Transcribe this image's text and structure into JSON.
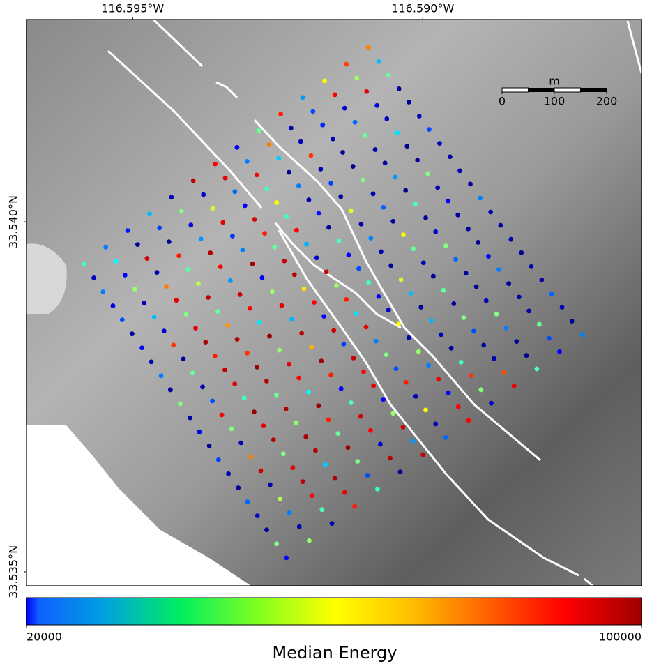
{
  "chart_data": {
    "type": "scatter",
    "xlim": [
      -116.59683,
      -116.58623
    ],
    "ylim": [
      33.5348,
      33.54289
    ],
    "xticks": [
      {
        "value": -116.595,
        "label": "116.595°W"
      },
      {
        "value": -116.59,
        "label": "116.590°W"
      }
    ],
    "yticks": [
      {
        "value": 33.54,
        "label": "33.540°N"
      },
      {
        "value": 33.535,
        "label": "33.535°N"
      }
    ],
    "lines": [
      {
        "start": [
          -116.59584,
          33.5394
        ],
        "end": [
          -116.59094,
          33.54249
        ],
        "values": [
          55000,
          40000,
          32000,
          45000,
          24000,
          95000,
          90000,
          30000,
          58000,
          88000,
          42000,
          70000,
          85000,
          80000
        ]
      },
      {
        "start": [
          -116.59567,
          33.5392
        ],
        "end": [
          -116.59076,
          33.54229
        ],
        "values": [
          25000,
          50000,
          22000,
          35000,
          60000,
          26000,
          92000,
          40000,
          80000,
          24000,
          36000,
          90000,
          62000,
          45000
        ]
      },
      {
        "start": [
          -116.59551,
          33.539
        ],
        "end": [
          -116.59059,
          33.5421
        ],
        "values": [
          40000,
          30000,
          94000,
          22000,
          28000,
          66000,
          38000,
          90000,
          46000,
          24000,
          33000,
          26000,
          92000,
          58000
        ]
      },
      {
        "start": [
          -116.59534,
          33.5388
        ],
        "end": [
          -116.59041,
          33.5419
        ],
        "values": [
          28000,
          62000,
          24000,
          88000,
          42000,
          92000,
          30000,
          55000,
          22000,
          86000,
          24000,
          38000,
          27000,
          23000
        ]
      },
      {
        "start": [
          -116.59518,
          33.5386
        ],
        "end": [
          -116.59024,
          33.54171
        ],
        "values": [
          36000,
          24000,
          80000,
          57000,
          96000,
          34000,
          93000,
          70000,
          40000,
          24000,
          22000,
          58000,
          25000,
          22000
        ]
      },
      {
        "start": [
          -116.59501,
          33.5384
        ],
        "end": [
          -116.59006,
          33.54151
        ],
        "values": [
          22000,
          45000,
          92000,
          64000,
          90000,
          40000,
          88000,
          55000,
          24000,
          35000,
          21000,
          23000,
          48000,
          24000
        ]
      },
      {
        "start": [
          -116.59484,
          33.5382
        ],
        "end": [
          -116.58989,
          33.54132
        ],
        "values": [
          30000,
          26000,
          60000,
          95000,
          42000,
          97000,
          58000,
          90000,
          31000,
          22000,
          60000,
          23000,
          21000,
          36000
        ]
      },
      {
        "start": [
          -116.59468,
          33.538
        ],
        "end": [
          -116.58971,
          33.54112
        ],
        "values": [
          24000,
          86000,
          92000,
          58000,
          94000,
          30000,
          94000,
          44000,
          22000,
          68000,
          24000,
          42000,
          22000,
          25000
        ]
      },
      {
        "start": [
          -116.59451,
          33.5378
        ],
        "end": [
          -116.58953,
          33.54093
        ],
        "values": [
          40000,
          22000,
          97000,
          78000,
          90000,
          62000,
          96000,
          26000,
          55000,
          23000,
          38000,
          21000,
          60000,
          22000
        ]
      },
      {
        "start": [
          -116.59435,
          33.5376
        ],
        "end": [
          -116.58936,
          33.54073
        ],
        "values": [
          22000,
          58000,
          88000,
          96000,
          48000,
          92000,
          72000,
          94000,
          30000,
          40000,
          22000,
          56000,
          24000,
          23000
        ]
      },
      {
        "start": [
          -116.59418,
          33.5374
        ],
        "end": [
          -116.58918,
          33.54054
        ],
        "values": [
          60000,
          24000,
          95000,
          86000,
          98000,
          44000,
          90000,
          62000,
          36000,
          24000,
          70000,
          22000,
          30000,
          21000
        ]
      },
      {
        "start": [
          -116.59401,
          33.5372
        ],
        "end": [
          -116.58901,
          33.54034
        ],
        "values": [
          23000,
          36000,
          92000,
          98000,
          62000,
          95000,
          30000,
          88000,
          55000,
          22000,
          58000,
          25000,
          23000,
          40000
        ]
      },
      {
        "start": [
          -116.59385,
          33.537
        ],
        "end": [
          -116.58883,
          33.54014
        ],
        "values": [
          28000,
          90000,
          55000,
          96000,
          92000,
          76000,
          94000,
          48000,
          30000,
          66000,
          24000,
          60000,
          22000,
          24000
        ]
      },
      {
        "start": [
          -116.59368,
          33.5368
        ],
        "end": [
          -116.58866,
          33.53995
        ],
        "values": [
          22000,
          60000,
          98000,
          58000,
          90000,
          97000,
          35000,
          92000,
          26000,
          45000,
          22000,
          38000,
          21000,
          22000
        ]
      },
      {
        "start": [
          -116.59352,
          33.5366
        ],
        "end": [
          -116.58848,
          33.53975
        ],
        "values": [
          35000,
          24000,
          92000,
          96000,
          50000,
          88000,
          95000,
          40000,
          70000,
          22000,
          58000,
          23000,
          30000,
          24000
        ]
      },
      {
        "start": [
          -116.59335,
          33.5364
        ],
        "end": [
          -116.5883,
          33.53956
        ],
        "values": [
          24000,
          80000,
          96000,
          62000,
          98000,
          30000,
          90000,
          60000,
          24000,
          44000,
          22000,
          21000,
          40000,
          22000
        ]
      },
      {
        "start": [
          -116.59318,
          33.5362
        ],
        "end": [
          -116.58813,
          33.53936
        ],
        "values": [
          22000,
          94000,
          60000,
          97000,
          88000,
          56000,
          92000,
          36000,
          62000,
          25000,
          60000,
          24000,
          22000,
          23000
        ]
      },
      {
        "start": [
          -116.59302,
          33.536
        ],
        "end": [
          -116.58795,
          33.53917
        ],
        "values": [
          38000,
          24000,
          92000,
          96000,
          58000,
          94000,
          30000,
          88000,
          40000,
          22000,
          36000,
          60000,
          24000,
          22000
        ]
      },
      {
        "start": [
          -116.59285,
          33.5358
        ],
        "end": [
          -116.58778,
          33.53897
        ],
        "values": [
          26000,
          64000,
          95000,
          46000,
          98000,
          90000,
          62000,
          24000,
          92000,
          55000,
          22000,
          40000,
          23000,
          38000
        ]
      },
      {
        "start": [
          -116.59269,
          33.5356
        ],
        "end": [
          -116.5876,
          33.53878
        ],
        "values": [
          22000,
          40000,
          90000,
          97000,
          60000,
          26000,
          94000,
          70000,
          30000,
          86000,
          24000,
          22000,
          58000,
          24000
        ]
      },
      {
        "start": [
          -116.59252,
          33.5354
        ],
        "end": [
          -116.58743,
          33.53858
        ],
        "values": [
          60000,
          24000,
          56000,
          92000,
          36000,
          96000,
          42000,
          24000,
          90000,
          60000,
          84000,
          22000,
          36000,
          22000
        ]
      },
      {
        "start": [
          -116.59235,
          33.5352
        ],
        "end": [
          -116.58725,
          33.53839
        ],
        "values": [
          30000,
          62000,
          24000,
          88000,
          54000,
          22000,
          94000,
          38000,
          90000,
          26000,
          92000,
          56000,
          30000,
          40000
        ]
      }
    ],
    "scale_bar": {
      "unit": "m",
      "ticks": [
        0,
        100,
        200
      ]
    },
    "colorbar": {
      "label": "Median Energy",
      "colormap": "jet",
      "lim": [
        20000,
        100000
      ],
      "ticks": [
        20000,
        100000
      ]
    }
  }
}
